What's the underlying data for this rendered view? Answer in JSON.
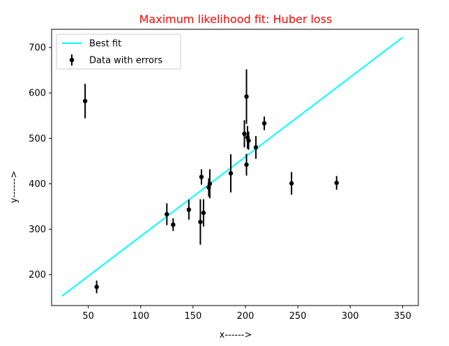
{
  "chart_data": {
    "type": "scatter",
    "title": "Maximum likelihood fit: Huber loss",
    "title_color": "#ff0000",
    "xlabel": "x------>",
    "ylabel": "y------>",
    "xlim": [
      15,
      365
    ],
    "ylim": [
      132,
      740
    ],
    "x_ticks": [
      50,
      100,
      150,
      200,
      250,
      300,
      350
    ],
    "y_ticks": [
      200,
      300,
      400,
      500,
      600,
      700
    ],
    "grid": false,
    "legend_position": "top-left",
    "series": [
      {
        "name": "Best fit",
        "kind": "line",
        "color": "#00ffff",
        "x": [
          25,
          350
        ],
        "y": [
          153,
          722
        ]
      },
      {
        "name": "Data with errors",
        "kind": "errorbar",
        "color": "#000000",
        "x": [
          47,
          58,
          125,
          131,
          146,
          157,
          158,
          160,
          165,
          166,
          186,
          199,
          201,
          201,
          202,
          203,
          210,
          218,
          244,
          287
        ],
        "y": [
          582,
          173,
          333,
          310,
          343,
          316,
          415,
          336,
          392,
          400,
          423,
          510,
          442,
          592,
          502,
          495,
          480,
          533,
          401,
          402
        ],
        "yerr": [
          38,
          14,
          24,
          14,
          22,
          50,
          17,
          30,
          20,
          32,
          42,
          30,
          24,
          60,
          25,
          20,
          25,
          15,
          25,
          15
        ]
      }
    ]
  }
}
